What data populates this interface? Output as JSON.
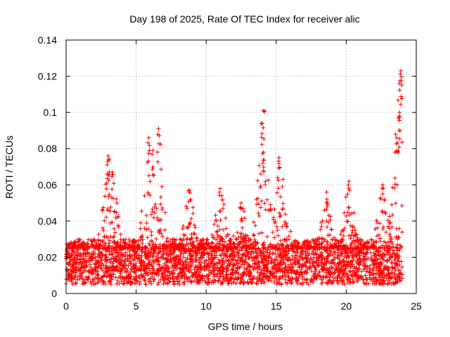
{
  "chart_data": {
    "type": "scatter",
    "title": "Day 198 of 2025, Rate Of TEC Index for receiver alic",
    "xlabel": "GPS time / hours",
    "ylabel": "ROTI / TECUs",
    "xlim": [
      0,
      25
    ],
    "ylim": [
      0,
      0.14
    ],
    "x_ticks": [
      0,
      5,
      10,
      15,
      20,
      25
    ],
    "x_tick_labels": [
      "0",
      "5",
      "10",
      "15",
      "20",
      "25"
    ],
    "y_ticks": [
      0,
      0.02,
      0.04,
      0.06,
      0.08,
      0.1,
      0.12,
      0.14
    ],
    "y_tick_labels": [
      "0",
      "0.02",
      "0.04",
      "0.06",
      "0.08",
      "0.1",
      "0.12",
      "0.14"
    ],
    "grid": true,
    "marker": "+",
    "marker_color": "#ff0000",
    "x_data_range": [
      0,
      24
    ],
    "baseline_band": [
      0.005,
      0.025
    ],
    "peak_events": [
      {
        "x": 3.0,
        "y": 0.076
      },
      {
        "x": 3.3,
        "y": 0.067
      },
      {
        "x": 5.9,
        "y": 0.086
      },
      {
        "x": 6.2,
        "y": 0.079
      },
      {
        "x": 6.6,
        "y": 0.091
      },
      {
        "x": 8.8,
        "y": 0.057
      },
      {
        "x": 11.0,
        "y": 0.058
      },
      {
        "x": 12.5,
        "y": 0.05
      },
      {
        "x": 13.9,
        "y": 0.066
      },
      {
        "x": 14.1,
        "y": 0.101
      },
      {
        "x": 14.0,
        "y": 0.094
      },
      {
        "x": 14.1,
        "y": 0.078
      },
      {
        "x": 15.2,
        "y": 0.075
      },
      {
        "x": 15.5,
        "y": 0.063
      },
      {
        "x": 18.6,
        "y": 0.056
      },
      {
        "x": 20.2,
        "y": 0.062
      },
      {
        "x": 22.6,
        "y": 0.06
      },
      {
        "x": 23.6,
        "y": 0.086
      },
      {
        "x": 23.8,
        "y": 0.1
      },
      {
        "x": 23.8,
        "y": 0.116
      },
      {
        "x": 23.9,
        "y": 0.123
      }
    ]
  }
}
